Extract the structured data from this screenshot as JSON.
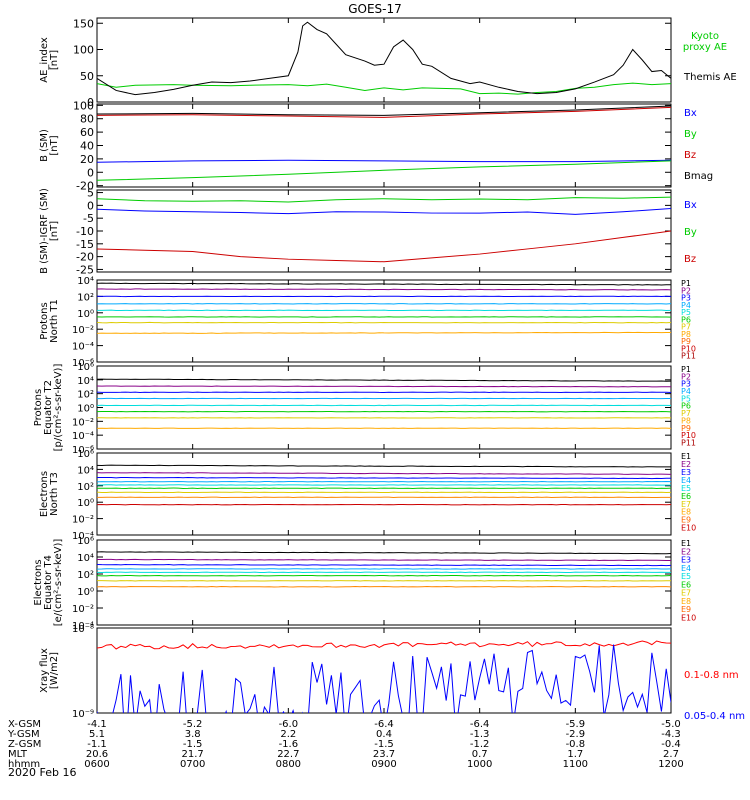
{
  "title": "GOES-17",
  "chart_data": [
    {
      "type": "line",
      "ylabel": [
        "AE_index",
        "[nT]"
      ],
      "ylim": [
        0,
        160
      ],
      "yticks": [
        "0",
        "50",
        "100",
        "150"
      ],
      "series": [
        {
          "name": "Kyoto proxy AE",
          "color": "#00cc00",
          "label_lines": [
            "Kyoto",
            "proxy AE"
          ],
          "points": [
            [
              6.0,
              35
            ],
            [
              6.2,
              28
            ],
            [
              6.4,
              32
            ],
            [
              6.8,
              33
            ],
            [
              7.0,
              32
            ],
            [
              7.4,
              31
            ],
            [
              7.6,
              32
            ],
            [
              8.0,
              33
            ],
            [
              8.2,
              31
            ],
            [
              8.4,
              34
            ],
            [
              8.6,
              28
            ],
            [
              8.8,
              22
            ],
            [
              9.0,
              27
            ],
            [
              9.2,
              23
            ],
            [
              9.4,
              27
            ],
            [
              9.6,
              26
            ],
            [
              9.8,
              25
            ],
            [
              10.0,
              16
            ],
            [
              10.2,
              17
            ],
            [
              10.4,
              15
            ],
            [
              10.6,
              18
            ],
            [
              10.8,
              20
            ],
            [
              11.0,
              26
            ],
            [
              11.2,
              28
            ],
            [
              11.4,
              33
            ],
            [
              11.6,
              36
            ],
            [
              11.8,
              33
            ],
            [
              12.0,
              35
            ]
          ]
        },
        {
          "name": "Themis AE",
          "color": "#000000",
          "label_lines": [
            "Themis AE"
          ],
          "points": [
            [
              6.0,
              45
            ],
            [
              6.2,
              22
            ],
            [
              6.4,
              14
            ],
            [
              6.6,
              18
            ],
            [
              6.8,
              24
            ],
            [
              7.0,
              32
            ],
            [
              7.2,
              38
            ],
            [
              7.4,
              37
            ],
            [
              7.6,
              40
            ],
            [
              7.8,
              45
            ],
            [
              8.0,
              50
            ],
            [
              8.1,
              95
            ],
            [
              8.15,
              145
            ],
            [
              8.2,
              152
            ],
            [
              8.3,
              138
            ],
            [
              8.4,
              130
            ],
            [
              8.5,
              110
            ],
            [
              8.6,
              90
            ],
            [
              8.8,
              78
            ],
            [
              8.9,
              70
            ],
            [
              9.0,
              72
            ],
            [
              9.1,
              105
            ],
            [
              9.2,
              118
            ],
            [
              9.3,
              100
            ],
            [
              9.4,
              72
            ],
            [
              9.5,
              68
            ],
            [
              9.7,
              45
            ],
            [
              9.9,
              35
            ],
            [
              10.0,
              38
            ],
            [
              10.2,
              28
            ],
            [
              10.4,
              20
            ],
            [
              10.6,
              16
            ],
            [
              10.8,
              18
            ],
            [
              11.0,
              25
            ],
            [
              11.2,
              38
            ],
            [
              11.4,
              52
            ],
            [
              11.5,
              70
            ],
            [
              11.6,
              100
            ],
            [
              11.7,
              80
            ],
            [
              11.8,
              58
            ],
            [
              11.9,
              60
            ],
            [
              12.0,
              45
            ]
          ]
        }
      ]
    },
    {
      "type": "line",
      "ylabel": [
        "B (SM)",
        "[nT]"
      ],
      "ylim": [
        -22,
        102
      ],
      "yticks": [
        "100",
        "80",
        "60",
        "40",
        "20",
        "0",
        "-20"
      ],
      "series": [
        {
          "name": "Bx",
          "color": "#0000ff",
          "points": [
            [
              6,
              15
            ],
            [
              7,
              17
            ],
            [
              8,
              18
            ],
            [
              9,
              17
            ],
            [
              10,
              16
            ],
            [
              11,
              16
            ],
            [
              12,
              18
            ]
          ]
        },
        {
          "name": "By",
          "color": "#00cc00",
          "points": [
            [
              6,
              -12
            ],
            [
              7,
              -8
            ],
            [
              8,
              -3
            ],
            [
              9,
              3
            ],
            [
              10,
              8
            ],
            [
              11,
              12
            ],
            [
              12,
              17
            ]
          ]
        },
        {
          "name": "Bz",
          "color": "#cc0000",
          "points": [
            [
              6,
              85
            ],
            [
              7,
              86
            ],
            [
              8,
              84
            ],
            [
              9,
              82
            ],
            [
              10,
              87
            ],
            [
              11,
              91
            ],
            [
              12,
              97
            ]
          ]
        },
        {
          "name": "Bmag",
          "color": "#000000",
          "points": [
            [
              6,
              87
            ],
            [
              7,
              88
            ],
            [
              8,
              86
            ],
            [
              9,
              85
            ],
            [
              10,
              89
            ],
            [
              11,
              93
            ],
            [
              12,
              99
            ]
          ]
        }
      ]
    },
    {
      "type": "line",
      "ylabel": [
        "B (SM)-IGRF (SM)",
        "[nT]"
      ],
      "ylim": [
        -26,
        6
      ],
      "yticks": [
        "5",
        "0",
        "-5",
        "-10",
        "-15",
        "-20",
        "-25"
      ],
      "series": [
        {
          "name": "Bx",
          "color": "#0000ff",
          "points": [
            [
              6,
              -1.5
            ],
            [
              6.5,
              -2.2
            ],
            [
              7,
              -2.5
            ],
            [
              7.5,
              -2.8
            ],
            [
              8,
              -3.2
            ],
            [
              8.5,
              -2.5
            ],
            [
              9,
              -2.6
            ],
            [
              9.5,
              -3.0
            ],
            [
              10,
              -3.0
            ],
            [
              10.5,
              -2.6
            ],
            [
              11,
              -3.5
            ],
            [
              11.5,
              -2.5
            ],
            [
              12,
              -1.2
            ]
          ]
        },
        {
          "name": "By",
          "color": "#00cc00",
          "points": [
            [
              6,
              2.6
            ],
            [
              6.5,
              1.8
            ],
            [
              7,
              1.6
            ],
            [
              7.5,
              1.8
            ],
            [
              8,
              1.3
            ],
            [
              8.5,
              2.2
            ],
            [
              9,
              2.6
            ],
            [
              9.5,
              2.2
            ],
            [
              10,
              2.5
            ],
            [
              10.5,
              2.2
            ],
            [
              11,
              3.0
            ],
            [
              11.5,
              2.8
            ],
            [
              12,
              3.2
            ]
          ]
        },
        {
          "name": "Bz",
          "color": "#cc0000",
          "points": [
            [
              6,
              -17
            ],
            [
              6.5,
              -17.5
            ],
            [
              7,
              -18
            ],
            [
              7.5,
              -20
            ],
            [
              8,
              -21
            ],
            [
              8.5,
              -21.5
            ],
            [
              9,
              -22
            ],
            [
              9.5,
              -20.5
            ],
            [
              10,
              -19
            ],
            [
              10.5,
              -17
            ],
            [
              11,
              -15
            ],
            [
              11.5,
              -12.5
            ],
            [
              12,
              -10
            ]
          ]
        }
      ]
    },
    {
      "type": "line",
      "log": true,
      "ylabel": [
        "Protons",
        "North T1"
      ],
      "yrange_exp": [
        -6,
        4
      ],
      "ytick_exps": [
        4,
        2,
        0,
        -2,
        -4,
        -6
      ],
      "legend": [
        "P1",
        "P2",
        "P3",
        "P4",
        "P5",
        "P6",
        "P7",
        "P8",
        "P9",
        "P10",
        "P11"
      ],
      "series": [
        {
          "name": "P1",
          "color": "#000000",
          "log_values": [
            3.6,
            3.4
          ]
        },
        {
          "name": "P2",
          "color": "#880088",
          "log_values": [
            2.9,
            2.8
          ]
        },
        {
          "name": "P3",
          "color": "#0000ff",
          "log_values": [
            2.0,
            2.0
          ]
        },
        {
          "name": "P4",
          "color": "#00aaff",
          "log_values": [
            1.1,
            1.1
          ]
        },
        {
          "name": "P5",
          "color": "#00dddd",
          "log_values": [
            0.3,
            0.3
          ]
        },
        {
          "name": "P6",
          "color": "#00cc00",
          "log_values": [
            -0.5,
            -0.5
          ]
        },
        {
          "name": "P7",
          "color": "#ddcc00",
          "log_values": [
            -1.2,
            -1.2
          ]
        },
        {
          "name": "P8",
          "color": "#ffaa00",
          "log_values": [
            -2.5,
            -2.4
          ]
        }
      ]
    },
    {
      "type": "line",
      "log": true,
      "ylabel": [
        "Protons",
        "Equator T2",
        "[p/(cm²-s-sr-keV)]"
      ],
      "yrange_exp": [
        -6,
        6
      ],
      "ytick_exps": [
        6,
        4,
        2,
        0,
        -2,
        -4,
        -6
      ],
      "legend": [
        "P1",
        "P2",
        "P3",
        "P4",
        "P5",
        "P6",
        "P7",
        "P8",
        "P9",
        "P10",
        "P11"
      ],
      "series": [
        {
          "name": "P1",
          "color": "#000000",
          "log_values": [
            4.1,
            3.8
          ]
        },
        {
          "name": "P2",
          "color": "#880088",
          "log_values": [
            3.1,
            3.0
          ]
        },
        {
          "name": "P3",
          "color": "#0000ff",
          "log_values": [
            2.2,
            2.2
          ]
        },
        {
          "name": "P4",
          "color": "#00aaff",
          "log_values": [
            1.3,
            1.3
          ]
        },
        {
          "name": "P5",
          "color": "#00dddd",
          "log_values": [
            0.3,
            0.3
          ]
        },
        {
          "name": "P6",
          "color": "#00cc00",
          "log_values": [
            -0.6,
            -0.6
          ]
        },
        {
          "name": "P7",
          "color": "#ddcc00",
          "log_values": [
            -1.5,
            -1.5
          ]
        },
        {
          "name": "P8",
          "color": "#ffaa00",
          "log_values": [
            -3.0,
            -3.0
          ]
        }
      ]
    },
    {
      "type": "line",
      "log": true,
      "ylabel": [
        "Electrons",
        "North T3"
      ],
      "yrange_exp": [
        -4,
        6
      ],
      "ytick_exps": [
        6,
        4,
        2,
        0,
        -2,
        -4
      ],
      "legend": [
        "E1",
        "E2",
        "E3",
        "E4",
        "E5",
        "E6",
        "E7",
        "E8",
        "E9",
        "E10"
      ],
      "series": [
        {
          "name": "E1",
          "color": "#000000",
          "log_values": [
            4.5,
            4.3
          ]
        },
        {
          "name": "E2",
          "color": "#880088",
          "log_values": [
            3.6,
            3.4
          ]
        },
        {
          "name": "E3",
          "color": "#0000ff",
          "log_values": [
            3.0,
            2.9
          ]
        },
        {
          "name": "E4",
          "color": "#00aaff",
          "log_values": [
            2.5,
            2.5
          ]
        },
        {
          "name": "E5",
          "color": "#00dddd",
          "log_values": [
            2.1,
            2.1
          ]
        },
        {
          "name": "E6",
          "color": "#00cc00",
          "log_values": [
            1.7,
            1.7
          ]
        },
        {
          "name": "E7",
          "color": "#ddcc00",
          "log_values": [
            1.2,
            1.2
          ]
        },
        {
          "name": "E8",
          "color": "#ff8800",
          "log_values": [
            0.6,
            0.6
          ]
        },
        {
          "name": "E9",
          "color": "#cc0000",
          "log_values": [
            -0.3,
            -0.3
          ]
        }
      ]
    },
    {
      "type": "line",
      "log": true,
      "ylabel": [
        "Electrons",
        "Equator T4",
        "[e/(cm²-s-sr-keV)]"
      ],
      "yrange_exp": [
        -4,
        6
      ],
      "ytick_exps": [
        6,
        4,
        2,
        0,
        -2,
        -4
      ],
      "legend": [
        "E1",
        "E2",
        "E3",
        "E4",
        "E5",
        "E6",
        "E7",
        "E8",
        "E9",
        "E10"
      ],
      "series": [
        {
          "name": "E1",
          "color": "#000000",
          "log_values": [
            4.6,
            4.4
          ]
        },
        {
          "name": "E2",
          "color": "#880088",
          "log_values": [
            3.7,
            3.6
          ]
        },
        {
          "name": "E3",
          "color": "#0000ff",
          "log_values": [
            3.1,
            3.0
          ]
        },
        {
          "name": "E4",
          "color": "#00aaff",
          "log_values": [
            2.6,
            2.6
          ]
        },
        {
          "name": "E5",
          "color": "#00dddd",
          "log_values": [
            2.2,
            2.2
          ]
        },
        {
          "name": "E6",
          "color": "#00cc00",
          "log_values": [
            1.8,
            1.8
          ]
        },
        {
          "name": "E7",
          "color": "#ddcc00",
          "log_values": [
            1.2,
            1.2
          ]
        },
        {
          "name": "E8",
          "color": "#ff8800",
          "log_values": [
            0.5,
            0.5
          ]
        }
      ]
    },
    {
      "type": "line",
      "log": true,
      "ylabel": [
        "Xray flux",
        "[W/m2]"
      ],
      "yrange_exp": [
        -9,
        -8
      ],
      "ytick_exps": [
        -8,
        -9
      ],
      "series": [
        {
          "name": "0.1-0.8 nm",
          "color": "#ff0000",
          "log_values": [
            -8.22,
            -8.18
          ]
        },
        {
          "name": "0.05-0.4 nm",
          "color": "#0000ff",
          "log_values": [
            -9.0,
            -8.6
          ]
        }
      ]
    }
  ],
  "x_axis": {
    "range": [
      6,
      12
    ],
    "ticks": [
      6,
      7,
      8,
      9,
      10,
      11,
      12
    ],
    "rows": [
      {
        "label": "X-GSM",
        "values": [
          "-4.1",
          "-5.2",
          "-6.0",
          "-6.4",
          "-6.4",
          "-5.9",
          "-5.0"
        ]
      },
      {
        "label": "Y-GSM",
        "values": [
          "5.1",
          "3.8",
          "2.2",
          "0.4",
          "-1.3",
          "-2.9",
          "-4.3"
        ]
      },
      {
        "label": "Z-GSM",
        "values": [
          "-1.1",
          "-1.5",
          "-1.6",
          "-1.5",
          "-1.2",
          "-0.8",
          "-0.4"
        ]
      },
      {
        "label": "MLT",
        "values": [
          "20.6",
          "21.7",
          "22.7",
          "23.7",
          "0.7",
          "1.7",
          "2.7"
        ]
      },
      {
        "label": "hhmm",
        "values": [
          "0600",
          "0700",
          "0800",
          "0900",
          "1000",
          "1100",
          "1200"
        ]
      }
    ],
    "date": "2020 Feb 16"
  }
}
